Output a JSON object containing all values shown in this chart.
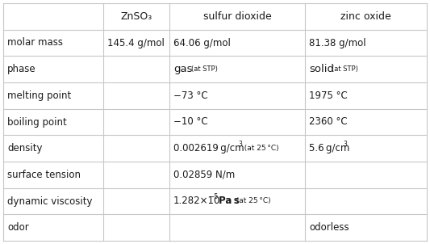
{
  "col_headers": [
    "ZnSO₃",
    "sulfur dioxide",
    "zinc oxide"
  ],
  "row_headers": [
    "molar mass",
    "phase",
    "melting point",
    "boiling point",
    "density",
    "surface tension",
    "dynamic viscosity",
    "odor"
  ],
  "cells": [
    [
      "145.4 g/mol",
      "64.06 g/mol",
      "81.38 g/mol"
    ],
    [
      "",
      "phase_so2",
      "phase_zno"
    ],
    [
      "",
      "−73 °C",
      "1975 °C"
    ],
    [
      "",
      "−10 °C",
      "2360 °C"
    ],
    [
      "",
      "density_so2",
      "density_zno"
    ],
    [
      "",
      "0.02859 N/m",
      ""
    ],
    [
      "",
      "viscosity_so2",
      ""
    ],
    [
      "",
      "",
      "odorless"
    ]
  ],
  "background_color": "#ffffff",
  "grid_color": "#c8c8c8",
  "text_color": "#1a1a1a",
  "figsize": [
    5.33,
    3.02
  ],
  "dpi": 100
}
